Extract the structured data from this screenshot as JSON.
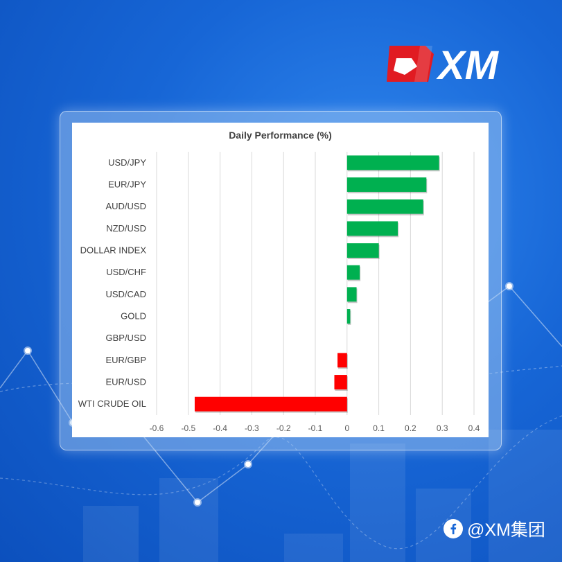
{
  "brand": {
    "logo_text": "XM",
    "watermark": "@XM集团",
    "colors": {
      "background": "#1766d6",
      "logo_red": "#e11b22",
      "positive": "#00b050",
      "negative": "#ff0000"
    },
    "icons": [
      "facebook-icon"
    ]
  },
  "chart_data": {
    "type": "bar",
    "orientation": "horizontal",
    "title": "Daily Performance (%)",
    "categories": [
      "USD/JPY",
      "EUR/JPY",
      "AUD/USD",
      "NZD/USD",
      "DOLLAR INDEX",
      "USD/CHF",
      "USD/CAD",
      "GOLD",
      "GBP/USD",
      "EUR/GBP",
      "EUR/USD",
      "WTI CRUDE OIL"
    ],
    "values": [
      0.29,
      0.25,
      0.24,
      0.16,
      0.1,
      0.04,
      0.03,
      0.01,
      0.0,
      -0.03,
      -0.04,
      -0.48
    ],
    "xlim": [
      -0.6,
      0.4
    ],
    "xticks": [
      -0.6,
      -0.5,
      -0.4,
      -0.3,
      -0.2,
      -0.1,
      0,
      0.1,
      0.2,
      0.3,
      0.4
    ],
    "xtick_labels": [
      "-0.6",
      "-0.5",
      "-0.4",
      "-0.3",
      "-0.2",
      "-0.1",
      "0",
      "0.1",
      "0.2",
      "0.3",
      "0.4"
    ],
    "grid": "vertical",
    "legend": "none",
    "positive_color": "#00b050",
    "negative_color": "#ff0000"
  }
}
